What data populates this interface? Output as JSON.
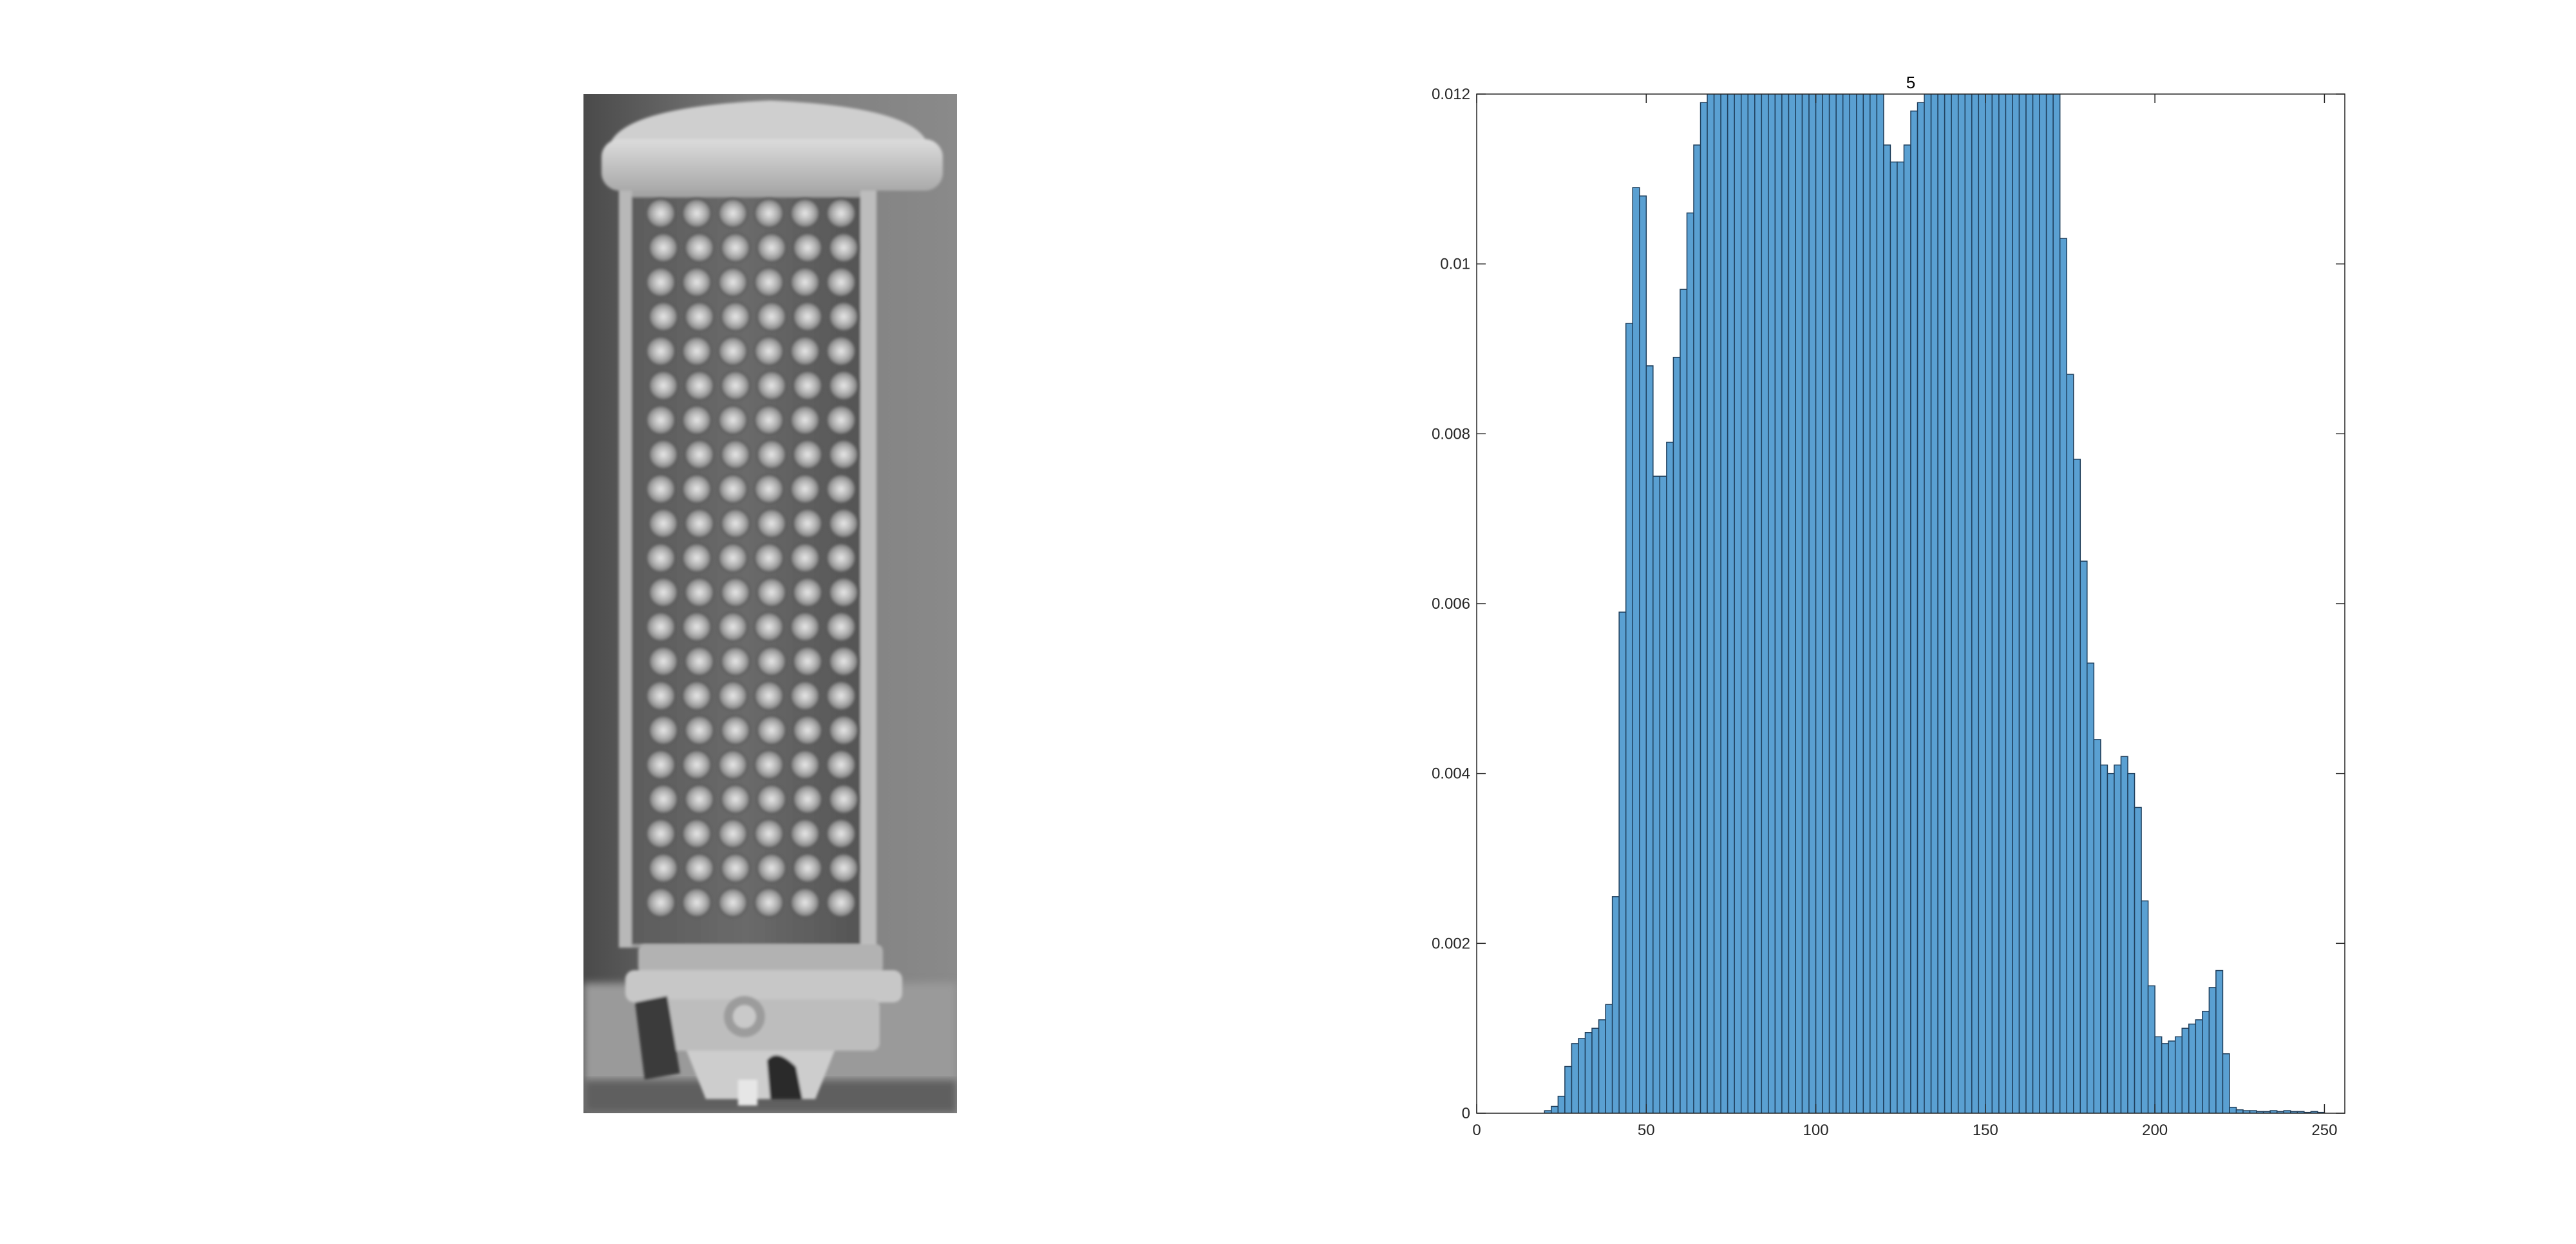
{
  "figure": {
    "photo_icon": "led-lamp-grayscale-photo",
    "bar_color": "#5aa0d2",
    "bar_edge_color": "#1f3f5c",
    "axis_color": "#262626"
  },
  "chart_data": {
    "type": "bar",
    "title": "5",
    "xlabel": "",
    "ylabel": "",
    "xlim": [
      0,
      256
    ],
    "ylim": [
      0,
      0.012
    ],
    "grid": false,
    "x_ticks": [
      0,
      50,
      100,
      150,
      200,
      250
    ],
    "x_tick_labels": [
      "0",
      "50",
      "100",
      "150",
      "200",
      "250"
    ],
    "y_ticks": [
      0,
      0.002,
      0.004,
      0.006,
      0.008,
      0.01,
      0.012
    ],
    "y_tick_labels": [
      "0",
      "0.002",
      "0.004",
      "0.006",
      "0.008",
      "0.01",
      "0.012"
    ],
    "bin_width": 2,
    "bin_starts": [
      20,
      22,
      24,
      26,
      28,
      30,
      32,
      34,
      36,
      38,
      40,
      42,
      44,
      46,
      48,
      50,
      52,
      54,
      56,
      58,
      60,
      62,
      64,
      66,
      68,
      70,
      72,
      74,
      76,
      78,
      80,
      82,
      84,
      86,
      88,
      90,
      92,
      94,
      96,
      98,
      100,
      102,
      104,
      106,
      108,
      110,
      112,
      114,
      116,
      118,
      120,
      122,
      124,
      126,
      128,
      130,
      132,
      134,
      136,
      138,
      140,
      142,
      144,
      146,
      148,
      150,
      152,
      154,
      156,
      158,
      160,
      162,
      164,
      166,
      168,
      170,
      172,
      174,
      176,
      178,
      180,
      182,
      184,
      186,
      188,
      190,
      192,
      194,
      196,
      198,
      200,
      202,
      204,
      206,
      208,
      210,
      212,
      214,
      216,
      218,
      220,
      222,
      224,
      226,
      228,
      230,
      232,
      234,
      236,
      238,
      240,
      242,
      244,
      246,
      248
    ],
    "values": [
      3e-05,
      8e-05,
      0.0002,
      0.00055,
      0.00082,
      0.00088,
      0.00095,
      0.001,
      0.0011,
      0.00128,
      0.00255,
      0.0059,
      0.0093,
      0.0109,
      0.0108,
      0.0088,
      0.0075,
      0.0075,
      0.0079,
      0.0089,
      0.0097,
      0.0106,
      0.0114,
      0.0119,
      0.0121,
      0.0122,
      0.0123,
      0.0124,
      0.0124,
      0.0125,
      0.0125,
      0.0125,
      0.0125,
      0.0125,
      0.0125,
      0.0125,
      0.0125,
      0.0125,
      0.0125,
      0.0125,
      0.0125,
      0.0125,
      0.0125,
      0.0125,
      0.0125,
      0.0125,
      0.0125,
      0.0125,
      0.0125,
      0.0125,
      0.0114,
      0.0112,
      0.0112,
      0.0114,
      0.0118,
      0.0119,
      0.0124,
      0.0125,
      0.0125,
      0.0125,
      0.0125,
      0.0125,
      0.0125,
      0.0125,
      0.0125,
      0.0125,
      0.0125,
      0.0125,
      0.0125,
      0.0125,
      0.0125,
      0.0125,
      0.0125,
      0.0125,
      0.0125,
      0.0125,
      0.0103,
      0.0087,
      0.0077,
      0.0065,
      0.0053,
      0.0044,
      0.0041,
      0.004,
      0.0041,
      0.0042,
      0.004,
      0.0036,
      0.0025,
      0.0015,
      0.0009,
      0.00082,
      0.00085,
      0.0009,
      0.001,
      0.00105,
      0.0011,
      0.0012,
      0.00148,
      0.00168,
      0.0007,
      7e-05,
      4e-05,
      3e-05,
      3e-05,
      2e-05,
      2e-05,
      3e-05,
      2e-05,
      3e-05,
      2e-05,
      2e-05,
      1e-05,
      2e-05,
      1e-05
    ]
  }
}
